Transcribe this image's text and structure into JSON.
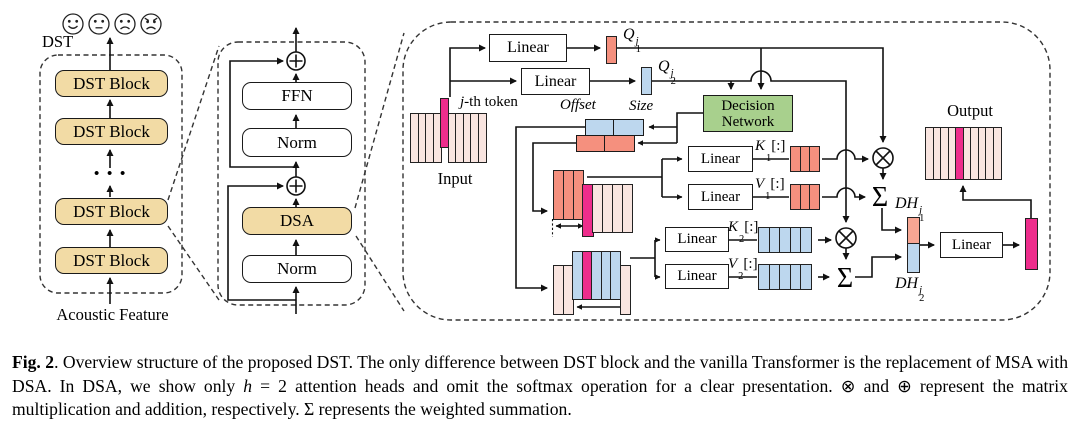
{
  "colors": {
    "tan": "#F2DBA5",
    "green": "#A8D08D",
    "pale": "#F9E5E0",
    "hot": "#EE2D8C",
    "salmon": "#F5907E",
    "blue": "#BDD7EE",
    "dhsalmon": "#F7A693"
  },
  "left_panel": {
    "title": "DST",
    "emojis": [
      "happy-face",
      "neutral-face",
      "sad-face",
      "angry-face"
    ],
    "blocks": {
      "b1": "DST Block",
      "b2": "DST Block",
      "b3": "DST Block",
      "b4": "DST Block"
    },
    "dots": "• • •",
    "input_label": "Acoustic Feature"
  },
  "mid_panel": {
    "ffn": "FFN",
    "norm_top": "Norm",
    "dsa": "DSA",
    "norm_bottom": "Norm"
  },
  "dsa_panel": {
    "input_label": "Input",
    "output_label": "Output",
    "jth_token": {
      "italic": "j",
      "rest": "-th token"
    },
    "linear_label": "Linear",
    "offset_label": "Offset",
    "size_label": "Size",
    "decision_network": {
      "line1": "Decision",
      "line2": "Network"
    },
    "q1": {
      "base": "Q",
      "sub": "1",
      "sup": "j"
    },
    "q2": {
      "base": "Q",
      "sub": "2",
      "sup": "j"
    },
    "k1": {
      "base": "K",
      "sub": "1",
      "suffix": "[:]"
    },
    "v1": {
      "base": "V",
      "sub": "1",
      "suffix": "[:]"
    },
    "k2": {
      "base": "K",
      "sub": "2",
      "suffix": "[:]"
    },
    "v2": {
      "base": "V",
      "sub": "2",
      "suffix": "[:]"
    },
    "dh1": {
      "base": "DH",
      "sub": "1",
      "sup": "j"
    },
    "dh2": {
      "base": "DH",
      "sub": "2",
      "sup": "j"
    },
    "sum_symbol": "Σ"
  },
  "tokens": {
    "input": [
      "pale",
      "pale",
      "pale",
      "pale",
      "hot",
      "pale",
      "pale",
      "pale",
      "pale",
      "pale"
    ],
    "output": [
      "pale",
      "pale",
      "pale",
      "pale",
      "hot",
      "pale",
      "pale",
      "pale",
      "pale",
      "pale"
    ],
    "head1": [
      "salmon",
      "salmon",
      "salmon",
      "hot",
      "pale",
      "pale",
      "pale",
      "pale"
    ],
    "head2": [
      "pale",
      "pale",
      "blue",
      "hot",
      "blue",
      "blue",
      "blue",
      "pale"
    ],
    "k1": [
      "salmon",
      "salmon",
      "salmon"
    ],
    "v1": [
      "salmon",
      "salmon",
      "salmon"
    ],
    "k2": [
      "blue",
      "blue",
      "blue",
      "blue",
      "blue"
    ],
    "v2": [
      "blue",
      "blue",
      "blue",
      "blue",
      "blue"
    ]
  },
  "caption": {
    "fig_label": "Fig. 2",
    "part1": ".  Overview structure of the proposed DST. The only difference between DST block and the vanilla Transformer is the replacement of MSA with DSA. In DSA, we show only ",
    "math_h": "h",
    "part2": " = 2 attention heads and omit the softmax operation for a clear presentation. ⊗ and ⊕ represent the matrix multiplication and addition, respectively. Σ represents the weighted summation."
  }
}
